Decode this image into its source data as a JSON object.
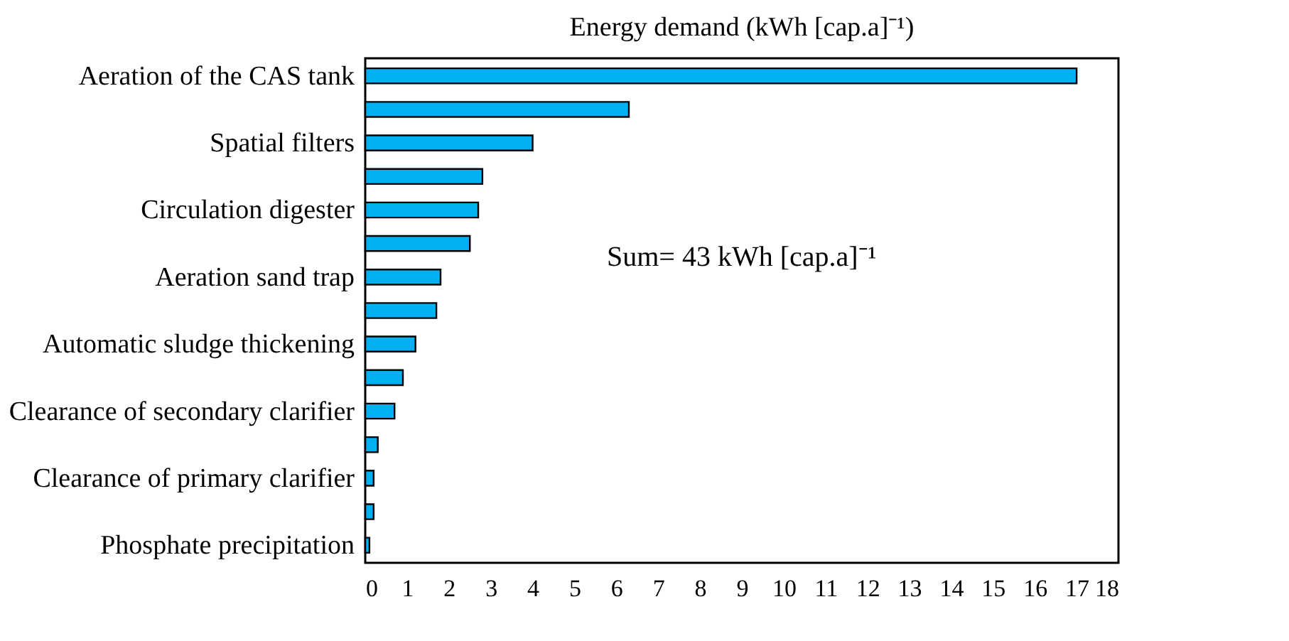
{
  "chart_data": {
    "type": "bar",
    "orientation": "horizontal",
    "xlabel": "Energy demand (kWh [cap.a]⁻¹)",
    "categories": [
      "Aeration of the CAS tank",
      null,
      "Spatial filters",
      null,
      "Circulation digester",
      null,
      "Aeration sand trap",
      null,
      "Automatic sludge thickening",
      null,
      "Clearance of secondary clarifier",
      null,
      "Clearance of primary clarifier",
      null,
      "Phosphate precipitation"
    ],
    "values": [
      17.0,
      6.3,
      4.0,
      2.8,
      2.7,
      2.5,
      1.8,
      1.7,
      1.2,
      0.9,
      0.7,
      0.3,
      0.2,
      0.2,
      0.1
    ],
    "color": "#00b0f0",
    "xlim": [
      0,
      18
    ],
    "xticks": [
      0,
      1,
      2,
      3,
      4,
      5,
      6,
      7,
      8,
      9,
      10,
      11,
      12,
      13,
      14,
      15,
      16,
      17,
      18
    ],
    "grid": false,
    "annotations": [
      "Sum= 43 kWh [cap.a]⁻¹"
    ]
  }
}
